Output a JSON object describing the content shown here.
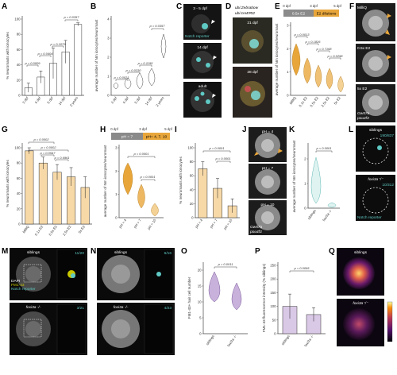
{
  "panels": {
    "A": {
      "label": "A",
      "ylabel": "% neuromasts with ionocytes",
      "yticks": [
        "0",
        "20",
        "40",
        "60",
        "80",
        "100"
      ],
      "xcats": [
        "3 dpf",
        "4 dpf",
        "5 dpf",
        "14 dpf",
        "2 years"
      ],
      "means": [
        10,
        24,
        42,
        57,
        93
      ],
      "sds": [
        6,
        8,
        20,
        15,
        2
      ],
      "pvals": [
        "p = 0.0009",
        "p = 0.0404",
        "p = 0.1079",
        "p = 0.0357"
      ]
    },
    "B": {
      "label": "B",
      "ylabel": "average number of Nm ionocytes/neuromast",
      "yticks": [
        "0",
        "1",
        "2",
        "3",
        "4"
      ],
      "xcats": [
        "3 dpf",
        "4 dpf",
        "5 dpf",
        "14 dpf",
        "2 years"
      ],
      "pvals": [
        "p = 0.0021",
        "p = 0.0330",
        "p = 0.1195",
        "p = 0.0357"
      ]
    },
    "C": {
      "label": "C",
      "labels": [
        "3 - 5 dpf",
        "Notch reporter",
        "14 dpf",
        "adult"
      ]
    },
    "D": {
      "label": "D",
      "header1": "ubi:Zebrabow",
      "header2": "ubi:creERt2",
      "labels": [
        "21 dpf",
        "28 dpf"
      ]
    },
    "E": {
      "label": "E",
      "timeline": [
        "0 dpf",
        "3 dpf",
        "5 dpf"
      ],
      "bar1": "0.5x E2",
      "bar2": "E2 dilutions",
      "ylabel": "average number of Nm ionocytes/neuromast",
      "yticks": [
        "0",
        "1",
        "2",
        "3"
      ],
      "xcats": [
        "MilliQ",
        "0.1x E2",
        "0.5x E2",
        "2.5x E2",
        "5x E2"
      ],
      "pvals": [
        "p = 0.0013",
        "p = 0.1826",
        "p = 0.7168",
        "p = 0.0298"
      ]
    },
    "F": {
      "label": "F",
      "labels": [
        "MilliQ",
        "0.5x E2",
        "5x E2"
      ],
      "markers": [
        "Gw57a",
        "pou4f3"
      ]
    },
    "G": {
      "label": "G",
      "ylabel": "% neuromasts with ionocytes",
      "yticks": [
        "0",
        "20",
        "40",
        "60",
        "80",
        "100"
      ],
      "xcats": [
        "MilliQ",
        "0.1x E2",
        "0.5x E2",
        "2.5x E2",
        "5x E2"
      ],
      "means": [
        96,
        80,
        68,
        62,
        48
      ],
      "sds": [
        4,
        8,
        10,
        12,
        14
      ],
      "pvals": [
        "p = 0.0002",
        "p = 0.0002",
        "p = 0.0547",
        "p = 0.6961"
      ]
    },
    "H": {
      "label": "H",
      "timeline": [
        "0 dpf",
        "3 dpf",
        "5 dpf"
      ],
      "bar1": "pH = 7",
      "bar2": "pH= 4, 7, 10",
      "ylabel": "average number of Nm ionocytes/neuromast",
      "yticks": [
        "0",
        "1",
        "2",
        "3"
      ],
      "xcats": [
        "pH = 4",
        "pH = 7",
        "pH = 10"
      ],
      "pvals": [
        "p = 0.0001",
        "p = 0.0001"
      ]
    },
    "I": {
      "label": "I",
      "ylabel": "% neuromasts with ionocytes",
      "yticks": [
        "0",
        "20",
        "40",
        "60",
        "80",
        "100"
      ],
      "xcats": [
        "pH = 4",
        "pH = 7",
        "pH = 10"
      ],
      "means": [
        70,
        42,
        17
      ],
      "sds": [
        10,
        14,
        10
      ],
      "pvals": [
        "p = 0.0001",
        "p = 0.0001"
      ]
    },
    "J": {
      "label": "J",
      "labels": [
        "pH = 4",
        "pH = 7",
        "pH = 10"
      ],
      "markers": [
        "Gw57a",
        "pou4f3"
      ]
    },
    "K": {
      "label": "K",
      "ylabel": "average number of Nm ionocytes/neuromast",
      "yticks": [
        "0",
        "1",
        "2"
      ],
      "xcats": [
        "siblings",
        "foxi3a -/-"
      ],
      "pvals": [
        "p < 0.0001"
      ]
    },
    "L": {
      "label": "L",
      "top": "siblings",
      "topcount": "190/837",
      "bottom": "foxi3a⁻/⁻",
      "bottomcount": "10/312",
      "legend": "Notch reporter"
    },
    "M": {
      "label": "M",
      "top": "siblings",
      "topcount": "11/20",
      "bottom": "foxi3a -/-",
      "bottomcount": "3/21",
      "legend": [
        "DAPI",
        "FM1-43",
        "Notch reporter"
      ]
    },
    "N": {
      "label": "N",
      "top": "siblings",
      "topcount": "6/16",
      "bottom": "foxi3a -/-",
      "bottomcount": "4/23"
    },
    "O": {
      "label": "O",
      "ylabel": "FM1-43+ hair cell number",
      "yticks": [
        "0",
        "5",
        "10",
        "15",
        "20"
      ],
      "xcats": [
        "siblings",
        "foxi3a -/-"
      ],
      "pvals": [
        "p = 0.0011"
      ]
    },
    "P": {
      "label": "P",
      "ylabel": "FM1-43 fluorescence intensity (% siblings)",
      "yticks": [
        "0",
        "50",
        "100",
        "150",
        "200",
        "250"
      ],
      "xcats": [
        "siblings",
        "foxi3a -/-"
      ],
      "means": [
        100,
        70
      ],
      "sds": [
        45,
        25
      ],
      "pvals": [
        "p = 0.0095"
      ]
    },
    "Q": {
      "label": "Q",
      "top": "siblings",
      "bottom": "foxi3a⁻/⁻"
    }
  }
}
